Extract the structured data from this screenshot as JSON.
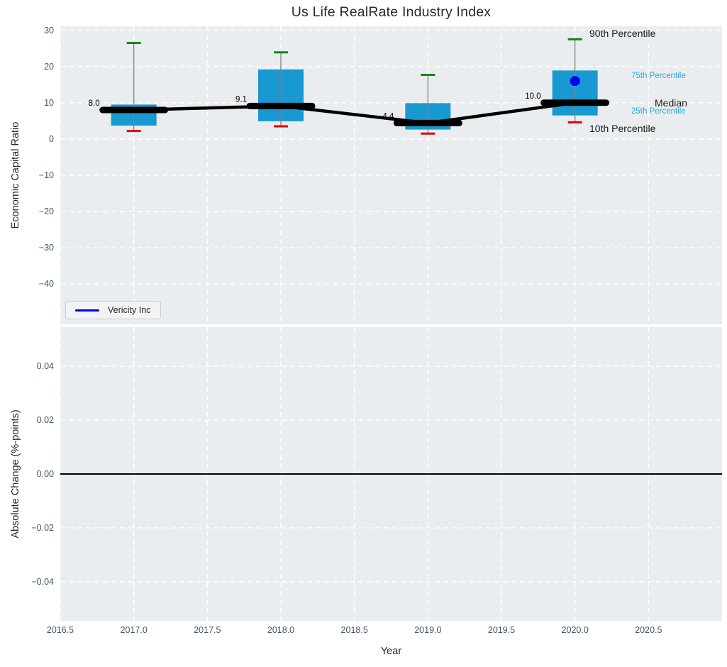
{
  "title": "Us Life RealRate Industry Index",
  "legend": {
    "label": "Vericity Inc"
  },
  "colors": {
    "box_fill": "#1899d1",
    "p90_cap": "#0a8c0a",
    "p10_cap": "#e60000",
    "whisker": "#808080",
    "median_line": "#000000",
    "company": "#0000ee",
    "axes_bg": "#e9edef",
    "grid": "#ffffff",
    "tick_label": "#44546a",
    "annotation_black": "#1a1a1a",
    "annotation_cyan": "#29a7dd"
  },
  "top_axes": {
    "ylabel": "Economic Capital Ratio",
    "yticks": [
      {
        "v": 30,
        "label": "30"
      },
      {
        "v": 20,
        "label": "20"
      },
      {
        "v": 10,
        "label": "10"
      },
      {
        "v": 0,
        "label": "0"
      },
      {
        "v": -10,
        "label": "−10"
      },
      {
        "v": -20,
        "label": "−20"
      },
      {
        "v": -30,
        "label": "−30"
      },
      {
        "v": -40,
        "label": "−40"
      }
    ],
    "annotations": [
      {
        "text": "90th Percentile",
        "color": "#1a1a1a",
        "size": "big"
      },
      {
        "text": "75th Percentile",
        "color": "#29a7dd",
        "size": "small"
      },
      {
        "text": "Median",
        "color": "#1a1a1a",
        "size": "big"
      },
      {
        "text": "25th Percentile",
        "color": "#29a7dd",
        "size": "small"
      },
      {
        "text": "10th Percentile",
        "color": "#1a1a1a",
        "size": "big"
      }
    ]
  },
  "bottom_axes": {
    "ylabel": "Absolute Change (%-points)",
    "yticks": [
      {
        "v": 0.04,
        "label": "0.04"
      },
      {
        "v": 0.02,
        "label": "0.02"
      },
      {
        "v": 0,
        "label": "0.00"
      },
      {
        "v": -0.02,
        "label": "−0.02"
      },
      {
        "v": -0.04,
        "label": "−0.04"
      }
    ]
  },
  "x_axis": {
    "label": "Year",
    "ticks": [
      {
        "v": 2016.5,
        "label": "2016.5"
      },
      {
        "v": 2017.0,
        "label": "2017.0"
      },
      {
        "v": 2017.5,
        "label": "2017.5"
      },
      {
        "v": 2018.0,
        "label": "2018.0"
      },
      {
        "v": 2018.5,
        "label": "2018.5"
      },
      {
        "v": 2019.0,
        "label": "2019.0"
      },
      {
        "v": 2019.5,
        "label": "2019.5"
      },
      {
        "v": 2020.0,
        "label": "2020.0"
      },
      {
        "v": 2020.5,
        "label": "2020.5"
      }
    ]
  },
  "chart_data": {
    "type": "boxplot",
    "title": "Us Life RealRate Industry Index",
    "xlabel": "Year",
    "ylabel_top": "Economic Capital Ratio",
    "ylabel_bottom": "Absolute Change (%-points)",
    "xlim": [
      2016.5,
      2021.0
    ],
    "top_ylim": [
      -51.1,
      31.1
    ],
    "bottom_ylim": [
      -0.0545,
      0.0545
    ],
    "grid": true,
    "legend_position": "lower left",
    "boxes": [
      {
        "year": 2017,
        "p10": 2.2,
        "p25": 3.7,
        "median": 8.0,
        "p75": 9.5,
        "p90": 26.5,
        "median_label": "8.0"
      },
      {
        "year": 2018,
        "p10": 3.5,
        "p25": 4.9,
        "median": 9.1,
        "p75": 19.2,
        "p90": 23.9,
        "median_label": "9.1"
      },
      {
        "year": 2019,
        "p10": 1.5,
        "p25": 2.6,
        "median": 4.4,
        "p75": 9.9,
        "p90": 17.7,
        "median_label": "4.4"
      },
      {
        "year": 2020,
        "p10": 4.6,
        "p25": 6.5,
        "median": 10.0,
        "p75": 18.9,
        "p90": 27.5,
        "median_label": "10.0"
      }
    ],
    "company_series": {
      "name": "Vericity Inc",
      "color": "#0000ee",
      "points": [
        {
          "x": 2020,
          "y": 16.0
        }
      ]
    },
    "bottom_zero_line": 0.0
  }
}
